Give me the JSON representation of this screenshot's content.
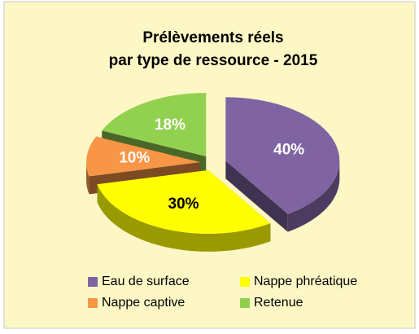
{
  "chart_data": {
    "type": "pie",
    "title": [
      "Prélèvements réels",
      "par type de ressource - 2015"
    ],
    "categories": [
      "Eau de surface",
      "Nappe phréatique",
      "Nappe captive",
      "Retenue"
    ],
    "values": [
      40,
      30,
      10,
      18
    ],
    "value_labels": [
      "40%",
      "30%",
      "10%",
      "18%"
    ],
    "colors": [
      "#8064a2",
      "#ffff00",
      "#f79646",
      "#92d050"
    ],
    "legend": "bottom"
  }
}
